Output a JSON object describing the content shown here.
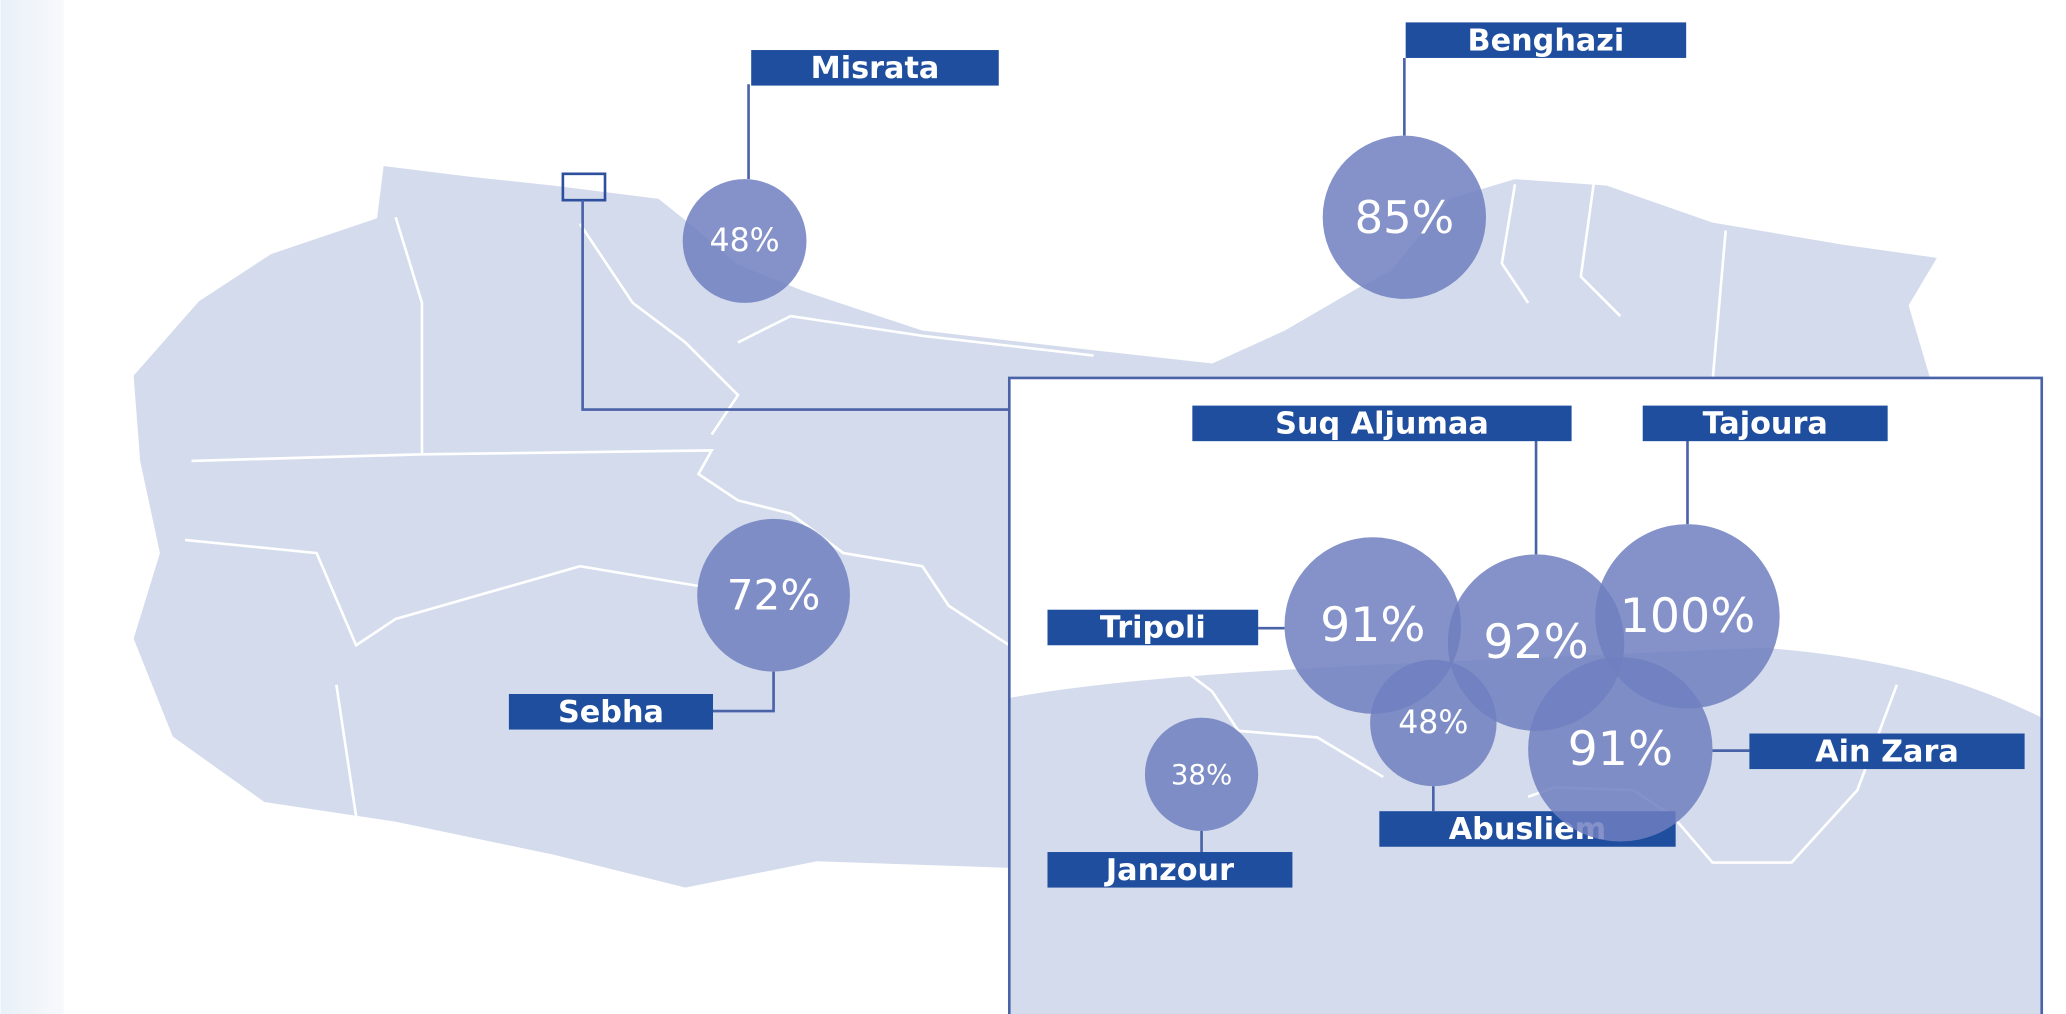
{
  "locations": [
    {
      "name": "Misrata",
      "value": "48%"
    },
    {
      "name": "Benghazi",
      "value": "85%"
    },
    {
      "name": "Sebha",
      "value": "72%"
    },
    {
      "name": "Suq Aljumaa",
      "value": "92%"
    },
    {
      "name": "Tajoura",
      "value": "100%"
    },
    {
      "name": "Tripoli",
      "value": "91%"
    },
    {
      "name": "Abusliem",
      "value": "48%"
    },
    {
      "name": "Ain Zara",
      "value": "91%"
    },
    {
      "name": "Janzour",
      "value": "38%"
    }
  ]
}
